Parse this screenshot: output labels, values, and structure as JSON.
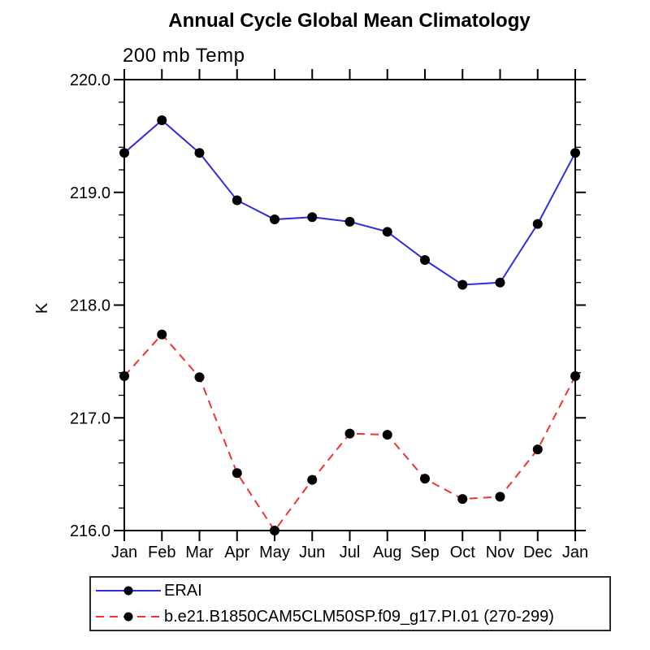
{
  "chart_data": {
    "type": "line",
    "title": "Annual Cycle Global Mean Climatology",
    "subtitle": "200 mb Temp",
    "ylabel": "K",
    "ylim": [
      216.0,
      220.0
    ],
    "ytick_major": 1.0,
    "ytick_minor": 0.2,
    "ytick_labels": [
      "220.0",
      "219.0",
      "218.0",
      "217.0",
      "216.0"
    ],
    "categories": [
      "Jan",
      "Feb",
      "Mar",
      "Apr",
      "May",
      "Jun",
      "Jul",
      "Aug",
      "Sep",
      "Oct",
      "Nov",
      "Dec",
      "Jan"
    ],
    "series": [
      {
        "name": "ERAI",
        "color": "#2e2ee0",
        "style": "solid",
        "marker": "black-dot",
        "values": [
          219.35,
          219.64,
          219.35,
          218.93,
          218.76,
          218.78,
          218.74,
          218.65,
          218.4,
          218.18,
          218.2,
          218.72,
          219.35
        ]
      },
      {
        "name": "b.e21.B1850CAM5CLM50SP.f09_g17.PI.01 (270-299)",
        "color": "#f43030",
        "style": "dashed",
        "marker": "black-dot",
        "values": [
          217.37,
          217.74,
          217.36,
          216.51,
          216.0,
          216.45,
          216.86,
          216.85,
          216.46,
          216.28,
          216.3,
          216.72,
          217.37
        ]
      }
    ],
    "marker_color": "#000000",
    "axis_color": "#000000",
    "grid": false,
    "legend_position": "bottom-left"
  }
}
